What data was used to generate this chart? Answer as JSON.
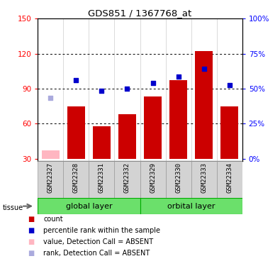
{
  "title": "GDS851 / 1367768_at",
  "samples": [
    "GSM22327",
    "GSM22328",
    "GSM22331",
    "GSM22332",
    "GSM22329",
    "GSM22330",
    "GSM22333",
    "GSM22334"
  ],
  "bar_values": [
    37,
    75,
    58,
    68,
    83,
    97,
    122,
    75
  ],
  "bar_absent": [
    true,
    false,
    false,
    false,
    false,
    false,
    false,
    false
  ],
  "rank_values": [
    82,
    97,
    88,
    90,
    95,
    100,
    107,
    93
  ],
  "rank_absent": [
    true,
    false,
    false,
    false,
    false,
    false,
    false,
    false
  ],
  "groups": [
    {
      "label": "global layer",
      "start": 0,
      "end": 4
    },
    {
      "label": "orbital layer",
      "start": 4,
      "end": 8
    }
  ],
  "group_color": "#6BE06B",
  "ylim_left": [
    28,
    150
  ],
  "yticks_left": [
    30,
    60,
    90,
    120,
    150
  ],
  "yticks_right": [
    0,
    25,
    50,
    75,
    100
  ],
  "bar_color": "#CC0000",
  "bar_absent_color": "#FFB6C1",
  "rank_color": "#0000CC",
  "rank_absent_color": "#AAAADD",
  "bg_color": "#ffffff",
  "bar_width": 0.7,
  "legend_items": [
    {
      "label": "count",
      "color": "#CC0000",
      "marker": "s"
    },
    {
      "label": "percentile rank within the sample",
      "color": "#0000CC",
      "marker": "s"
    },
    {
      "label": "value, Detection Call = ABSENT",
      "color": "#FFB6C1",
      "marker": "s"
    },
    {
      "label": "rank, Detection Call = ABSENT",
      "color": "#AAAADD",
      "marker": "s"
    }
  ]
}
